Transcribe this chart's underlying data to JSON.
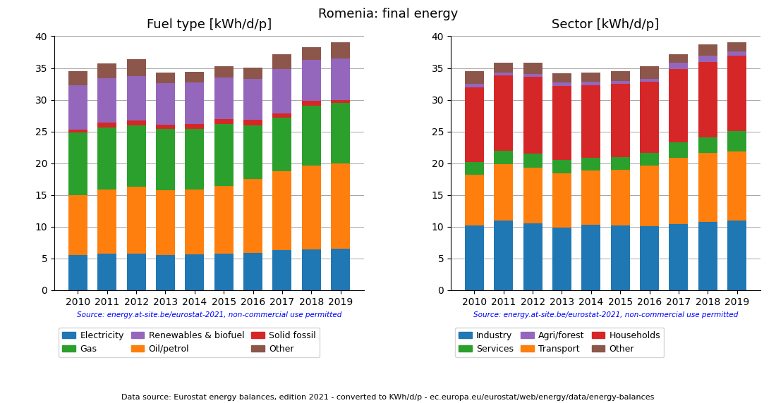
{
  "title": "Romenia: final energy",
  "years": [
    2010,
    2011,
    2012,
    2013,
    2014,
    2015,
    2016,
    2017,
    2018,
    2019
  ],
  "fuel_title": "Fuel type [kWh/d/p]",
  "fuel_data": {
    "Electricity": [
      5.5,
      5.7,
      5.8,
      5.5,
      5.6,
      5.8,
      5.9,
      6.3,
      6.4,
      6.5
    ],
    "Oil/petrol": [
      9.5,
      10.1,
      10.5,
      10.2,
      10.3,
      10.6,
      11.6,
      12.4,
      13.2,
      13.5
    ],
    "Gas": [
      9.8,
      9.8,
      9.7,
      9.7,
      9.5,
      9.8,
      8.5,
      8.5,
      9.5,
      9.5
    ],
    "Solid fossil": [
      0.5,
      0.8,
      0.7,
      0.7,
      0.8,
      0.8,
      0.8,
      0.6,
      0.7,
      0.5
    ],
    "Renewables & biofuel": [
      7.0,
      7.0,
      7.0,
      6.5,
      6.5,
      6.5,
      6.5,
      7.0,
      6.5,
      6.5
    ],
    "Other": [
      2.2,
      2.3,
      2.7,
      1.7,
      1.7,
      1.8,
      1.8,
      2.4,
      2.0,
      2.5
    ]
  },
  "fuel_colors": {
    "Electricity": "#1f77b4",
    "Oil/petrol": "#ff7f0e",
    "Gas": "#2ca02c",
    "Solid fossil": "#d62728",
    "Renewables & biofuel": "#9467bd",
    "Other": "#8c564b"
  },
  "fuel_order": [
    "Electricity",
    "Oil/petrol",
    "Gas",
    "Solid fossil",
    "Renewables & biofuel",
    "Other"
  ],
  "fuel_legend_order": [
    "Electricity",
    "Gas",
    "Renewables & biofuel",
    "Oil/petrol",
    "Solid fossil",
    "Other"
  ],
  "sector_title": "Sector [kWh/d/p]",
  "sector_data": {
    "Industry": [
      10.2,
      11.0,
      10.5,
      9.9,
      10.3,
      10.2,
      10.1,
      10.4,
      10.8,
      11.0
    ],
    "Transport": [
      8.0,
      8.8,
      8.8,
      8.5,
      8.5,
      8.8,
      9.5,
      10.4,
      10.8,
      10.8
    ],
    "Services": [
      2.0,
      2.2,
      2.2,
      2.1,
      2.0,
      2.0,
      2.0,
      2.5,
      2.5,
      3.3
    ],
    "Households": [
      11.8,
      11.8,
      12.1,
      11.7,
      11.5,
      11.5,
      11.2,
      11.5,
      11.8,
      11.8
    ],
    "Agri/forest": [
      0.5,
      0.5,
      0.5,
      0.5,
      0.5,
      0.5,
      0.5,
      1.0,
      1.0,
      0.7
    ],
    "Other": [
      2.0,
      1.5,
      1.7,
      1.5,
      1.5,
      1.5,
      2.0,
      1.4,
      1.8,
      1.5
    ]
  },
  "sector_colors": {
    "Industry": "#1f77b4",
    "Transport": "#ff7f0e",
    "Services": "#2ca02c",
    "Households": "#d62728",
    "Agri/forest": "#9467bd",
    "Other": "#8c564b"
  },
  "sector_order": [
    "Industry",
    "Transport",
    "Services",
    "Households",
    "Agri/forest",
    "Other"
  ],
  "sector_legend_order": [
    "Industry",
    "Services",
    "Agri/forest",
    "Transport",
    "Households",
    "Other"
  ],
  "source_text": "Source: energy.at-site.be/eurostat-2021, non-commercial use permitted",
  "bottom_text": "Data source: Eurostat energy balances, edition 2021 - converted to KWh/d/p - ec.europa.eu/eurostat/web/energy/data/energy-balances",
  "ylim": [
    0,
    40
  ],
  "yticks": [
    0,
    5,
    10,
    15,
    20,
    25,
    30,
    35,
    40
  ]
}
